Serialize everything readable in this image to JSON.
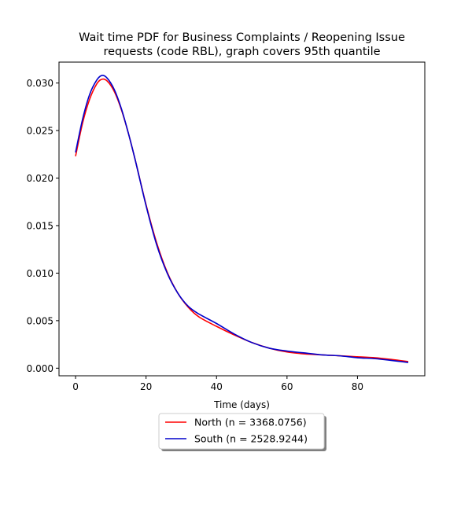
{
  "chart_data": {
    "type": "line",
    "title": "Wait time PDF for Business Complaints / Reopening Issue requests (code RBL), graph covers 95th quantile",
    "title_lines": [
      "Wait time PDF for Business Complaints / Reopening Issue",
      "requests (code RBL), graph covers 95th quantile"
    ],
    "xlabel": "Time (days)",
    "ylabel": "",
    "xlim": [
      -4.7,
      99.1
    ],
    "ylim": [
      -0.0008,
      0.0322
    ],
    "xticks": [
      0,
      20,
      40,
      60,
      80
    ],
    "xtick_labels": [
      "0",
      "20",
      "40",
      "60",
      "80"
    ],
    "yticks": [
      0.0,
      0.005,
      0.01,
      0.015,
      0.02,
      0.025,
      0.03
    ],
    "ytick_labels": [
      "0.000",
      "0.005",
      "0.010",
      "0.015",
      "0.020",
      "0.025",
      "0.030"
    ],
    "grid": false,
    "legend_position": "below-center",
    "series": [
      {
        "name": "North (n = 3368.0756)",
        "color": "#ff0000",
        "x": [
          0,
          2,
          4,
          6,
          7.5,
          9,
          11,
          13,
          15,
          17,
          20,
          23,
          26,
          29,
          32,
          35,
          40,
          45,
          50,
          55,
          60,
          65,
          70,
          75,
          80,
          85,
          90,
          94.4
        ],
        "y": [
          0.0223,
          0.0258,
          0.0283,
          0.0299,
          0.0304,
          0.0302,
          0.0291,
          0.0272,
          0.0247,
          0.0218,
          0.0172,
          0.0132,
          0.0101,
          0.0079,
          0.0064,
          0.0054,
          0.0044,
          0.0035,
          0.0027,
          0.0021,
          0.0017,
          0.0015,
          0.0014,
          0.0013,
          0.0012,
          0.0011,
          0.0009,
          0.0007
        ]
      },
      {
        "name": "South (n = 2528.9244)",
        "color": "#0000cc",
        "x": [
          0,
          2,
          4,
          6,
          7.5,
          9,
          11,
          13,
          15,
          17,
          20,
          23,
          26,
          29,
          32,
          35,
          40,
          45,
          50,
          55,
          60,
          65,
          70,
          75,
          80,
          85,
          90,
          94.4
        ],
        "y": [
          0.0227,
          0.0262,
          0.0288,
          0.0303,
          0.0308,
          0.0305,
          0.0293,
          0.0273,
          0.0247,
          0.0218,
          0.0171,
          0.013,
          0.01,
          0.0079,
          0.0065,
          0.0057,
          0.0047,
          0.0036,
          0.0027,
          0.0021,
          0.0018,
          0.0016,
          0.0014,
          0.0013,
          0.0011,
          0.001,
          0.0008,
          0.0006
        ]
      }
    ]
  }
}
